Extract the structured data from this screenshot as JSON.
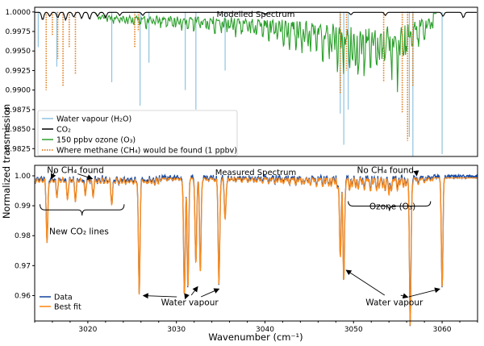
{
  "chart_data": [
    {
      "type": "line",
      "title": "Modelled Spectrum",
      "xlim": [
        3014,
        3064
      ],
      "ylim": [
        0.9815,
        1.0006
      ],
      "yticks": [
        "0.9825",
        "0.9850",
        "0.9875",
        "0.9900",
        "0.9925",
        "0.9950",
        "0.9975",
        "1.0000"
      ],
      "ytick_values": [
        0.9825,
        0.985,
        0.9875,
        0.99,
        0.9925,
        0.995,
        0.9975,
        1.0
      ],
      "grid": false,
      "legend": "lower-left",
      "series": [
        {
          "name": "Water vapour (H₂O)",
          "color": "#8fc3de",
          "style": "solid",
          "lines": [
            [
              3014.4,
              0.9955
            ],
            [
              3016.5,
              0.993
            ],
            [
              3022.7,
              0.991
            ],
            [
              3025.9,
              0.988
            ],
            [
              3026.9,
              0.9935
            ],
            [
              3031.0,
              0.99
            ],
            [
              3032.2,
              0.9875
            ],
            [
              3035.5,
              0.9925
            ],
            [
              3048.5,
              0.987
            ],
            [
              3048.9,
              0.983
            ],
            [
              3049.4,
              0.9875
            ],
            [
              3056.3,
              0.984
            ],
            [
              3056.7,
              0.9815
            ],
            [
              3060.0,
              0.9818
            ]
          ]
        },
        {
          "name": "CO₂",
          "color": "#000000",
          "style": "solid",
          "lines": [
            [
              3014.9,
              0.999
            ],
            [
              3015.7,
              0.9995
            ],
            [
              3016.6,
              0.9993
            ],
            [
              3017.5,
              0.999
            ],
            [
              3018.4,
              0.9994
            ],
            [
              3019.3,
              0.9992
            ],
            [
              3020.2,
              0.9991
            ],
            [
              3021.1,
              0.9995
            ],
            [
              3022.0,
              0.9993
            ],
            [
              3023.6,
              0.9996
            ],
            [
              3026.2,
              0.9996
            ],
            [
              3040.0,
              0.9997
            ],
            [
              3049.7,
              0.9997
            ],
            [
              3053.6,
              0.9996
            ],
            [
              3060.1,
              0.9995
            ],
            [
              3062.4,
              0.9993
            ]
          ]
        },
        {
          "name": "150 ppbv ozone (O₃)",
          "color": "#2ca02c",
          "style": "solid",
          "band_envelope": [
            [
              3021.0,
              0.9993
            ],
            [
              3023.0,
              0.9988
            ],
            [
              3025.0,
              0.9985
            ],
            [
              3027.0,
              0.9983
            ],
            [
              3029.0,
              0.9982
            ],
            [
              3031.0,
              0.998
            ],
            [
              3033.0,
              0.9979
            ],
            [
              3035.0,
              0.9977
            ],
            [
              3037.0,
              0.9974
            ],
            [
              3039.0,
              0.9969
            ],
            [
              3041.0,
              0.9964
            ],
            [
              3043.0,
              0.9958
            ],
            [
              3045.0,
              0.9952
            ],
            [
              3047.0,
              0.9942
            ],
            [
              3049.0,
              0.9926
            ],
            [
              3050.0,
              0.9915
            ],
            [
              3051.0,
              0.993
            ],
            [
              3052.0,
              0.9918
            ],
            [
              3053.0,
              0.9912
            ],
            [
              3054.0,
              0.9922
            ],
            [
              3055.0,
              0.992
            ],
            [
              3056.0,
              0.9938
            ],
            [
              3057.0,
              0.9955
            ],
            [
              3058.0,
              0.9968
            ],
            [
              3059.0,
              0.998
            ]
          ]
        },
        {
          "name": "Where methane (CH₄) would be found (1 ppbv)",
          "color": "#e07b1a",
          "style": "dotted",
          "lines": [
            [
              3015.3,
              0.99
            ],
            [
              3016.0,
              0.997
            ],
            [
              3016.6,
              0.994
            ],
            [
              3017.2,
              0.9905
            ],
            [
              3017.9,
              0.9955
            ],
            [
              3018.6,
              0.992
            ],
            [
              3025.3,
              0.9955
            ],
            [
              3025.7,
              0.9975
            ],
            [
              3048.5,
              0.9895
            ],
            [
              3049.2,
              0.9925
            ],
            [
              3053.4,
              0.991
            ],
            [
              3055.5,
              0.987
            ],
            [
              3056.1,
              0.9835
            ],
            [
              3056.7,
              0.9905
            ]
          ]
        }
      ]
    },
    {
      "type": "line",
      "title": "Measured Spectrum",
      "xlabel": "Wavenumber (cm⁻¹)",
      "xlim": [
        3014,
        3064
      ],
      "ylim": [
        0.9515,
        1.0035
      ],
      "xticks": [
        "3020",
        "3030",
        "3040",
        "3050",
        "3060"
      ],
      "xtick_values": [
        3020,
        3030,
        3040,
        3050,
        3060
      ],
      "yticks": [
        "0.96",
        "0.97",
        "0.98",
        "0.99",
        "1.00"
      ],
      "ytick_values": [
        0.96,
        0.97,
        0.98,
        0.99,
        1.0
      ],
      "grid": false,
      "legend": "lower-left",
      "series": [
        {
          "name": "Data",
          "color": "#1f4fa3",
          "style": "solid"
        },
        {
          "name": "Best fit",
          "color": "#ff8c1a",
          "style": "solid"
        }
      ],
      "absorption_lines": [
        [
          3015.4,
          0.9795
        ],
        [
          3016.5,
          0.995
        ],
        [
          3017.7,
          0.994
        ],
        [
          3018.6,
          0.9935
        ],
        [
          3019.7,
          0.995
        ],
        [
          3020.6,
          0.995
        ],
        [
          3022.7,
          0.9925
        ],
        [
          3025.8,
          0.962
        ],
        [
          3030.9,
          0.9605
        ],
        [
          3031.3,
          0.964
        ],
        [
          3032.2,
          0.9715
        ],
        [
          3032.7,
          0.969
        ],
        [
          3034.8,
          0.9645
        ],
        [
          3035.5,
          0.986
        ],
        [
          3048.5,
          0.9735
        ],
        [
          3048.9,
          0.969
        ],
        [
          3054.0,
          0.996
        ],
        [
          3056.4,
          0.952
        ],
        [
          3060.0,
          0.9635
        ]
      ],
      "annotations": [
        {
          "text": "No CH₄ found",
          "x": 3018.6,
          "y": 1.001
        },
        {
          "text": "New CO₂ lines",
          "x": 3019.0,
          "y": 0.9805
        },
        {
          "text": "Water vapour",
          "x": 3031.5,
          "y": 0.9568
        },
        {
          "text": "No CH₄ found",
          "x": 3053.6,
          "y": 1.001
        },
        {
          "text": "Ozone (O₃)",
          "x": 3054.4,
          "y": 0.9888
        },
        {
          "text": "Water vapour",
          "x": 3054.6,
          "y": 0.9568
        }
      ]
    }
  ],
  "figure": {
    "ylabel": "Normalized transmission"
  }
}
